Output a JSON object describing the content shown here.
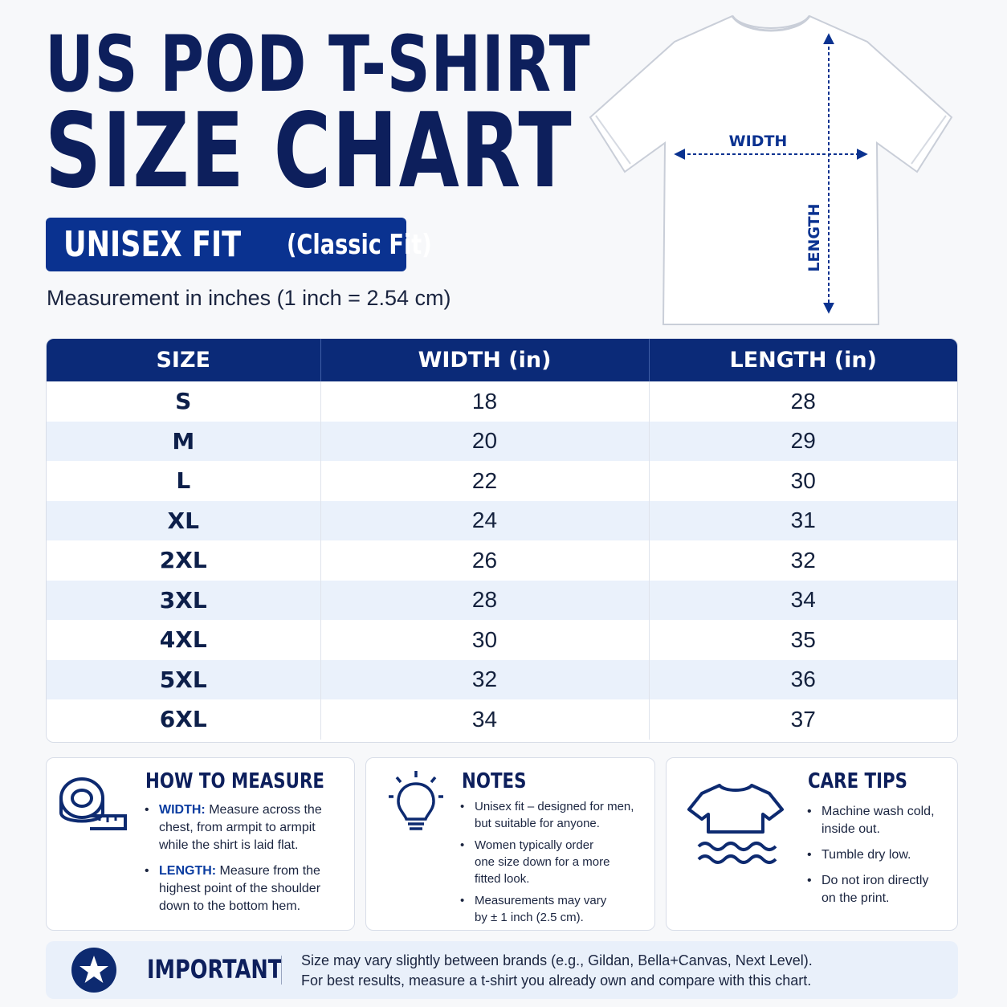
{
  "header": {
    "title_line1": "US POD T-SHIRT",
    "title_line2": "SIZE CHART",
    "fit_label": "UNISEX FIT",
    "fit_sub": "(Classic Fit)",
    "measurement_note": "Measurement in inches (1 inch = 2.54 cm)"
  },
  "diagram": {
    "width_label": "WIDTH",
    "length_label": "LENGTH",
    "accent_color": "#0a3290"
  },
  "table": {
    "headers": [
      "SIZE",
      "WIDTH (in)",
      "LENGTH (in)"
    ],
    "rows": [
      {
        "size": "S",
        "width": "18",
        "length": "28"
      },
      {
        "size": "M",
        "width": "20",
        "length": "29"
      },
      {
        "size": "L",
        "width": "22",
        "length": "30"
      },
      {
        "size": "XL",
        "width": "24",
        "length": "31"
      },
      {
        "size": "2XL",
        "width": "26",
        "length": "32"
      },
      {
        "size": "3XL",
        "width": "28",
        "length": "34"
      },
      {
        "size": "4XL",
        "width": "30",
        "length": "35"
      },
      {
        "size": "5XL",
        "width": "32",
        "length": "36"
      },
      {
        "size": "6XL",
        "width": "34",
        "length": "37"
      }
    ]
  },
  "how_to_measure": {
    "title": "HOW TO MEASURE",
    "icon": "tape-measure-icon",
    "items": [
      {
        "key": "WIDTH:",
        "line1": " Measure across the",
        "line2": "chest, from armpit to armpit",
        "line3": "while the shirt is laid flat."
      },
      {
        "key": "LENGTH:",
        "line1": " Measure from the",
        "line2": "highest point of the shoulder",
        "line3": "down to the bottom hem."
      }
    ]
  },
  "notes": {
    "title": "NOTES",
    "icon": "lightbulb-icon",
    "items": [
      {
        "line1": "Unisex fit – designed for men,",
        "line2": "but suitable for anyone."
      },
      {
        "line1": "Women typically order",
        "line2": "one size down for a more",
        "line3": "fitted look."
      },
      {
        "line1": "Measurements may vary",
        "line2": "by ± 1 inch (2.5 cm)."
      }
    ]
  },
  "care_tips": {
    "title": "CARE TIPS",
    "icon": "shirt-wash-icon",
    "items": [
      {
        "line1": "Machine wash cold,",
        "line2": "inside out."
      },
      {
        "line1": "Tumble dry low."
      },
      {
        "line1": "Do not iron directly",
        "line2": "on the print."
      }
    ]
  },
  "important": {
    "label": "IMPORTANT",
    "icon": "star-icon",
    "line1": "Size may vary slightly between brands (e.g., Gildan, Bella+Canvas, Next Level).",
    "line2": "For best results, measure a t-shirt you already own and compare with this chart."
  }
}
